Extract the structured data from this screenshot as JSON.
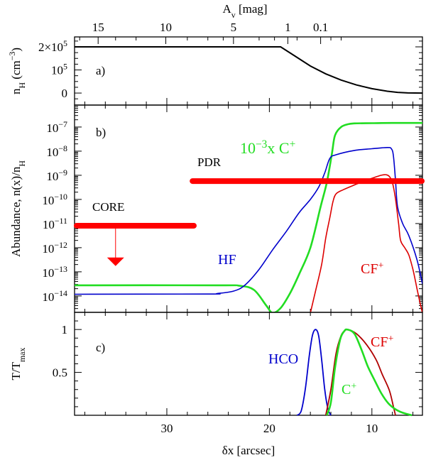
{
  "colors": {
    "hf": "#0000cc",
    "cplus": "#22dd22",
    "cfplus": "#dd0000",
    "cfplus_dark": "#b00000",
    "bar": "#ff0000",
    "density": "#000000"
  },
  "chart_data": [
    {
      "panel": "a",
      "type": "line",
      "panel_label": "a)",
      "ylabel": [
        {
          "t": "n"
        },
        {
          "t": "H",
          "sub": true
        },
        {
          "t": " (cm"
        },
        {
          "t": "−3",
          "sup": true
        },
        {
          "t": ")"
        }
      ],
      "xlim": [
        39.0,
        5.07
      ],
      "ylim": [
        -52000,
        243000
      ],
      "yticks": [
        {
          "v": 200000,
          "label": [
            {
              "t": "2×10"
            },
            {
              "t": "5",
              "sup": true
            }
          ]
        },
        {
          "v": 100000,
          "label": [
            {
              "t": "10"
            },
            {
              "t": "5",
              "sup": true
            }
          ]
        },
        {
          "v": 0,
          "label": [
            {
              "t": "0"
            }
          ]
        }
      ],
      "top_axis": {
        "label": [
          {
            "t": "A"
          },
          {
            "t": "v",
            "sub": true
          },
          {
            "t": " [mag]"
          }
        ],
        "ticks": [
          {
            "label": "15",
            "dx": 36.7
          },
          {
            "label": "10",
            "dx": 30.1
          },
          {
            "label": "5",
            "dx": 23.5
          },
          {
            "label": "1",
            "dx": 18.2
          },
          {
            "label": "0.1",
            "dx": 15.0
          }
        ]
      },
      "series": [
        {
          "name": "n_H",
          "color": "density",
          "x": [
            39.0,
            18.9,
            17.5,
            16,
            14.5,
            13,
            11.5,
            10,
            8.5,
            7.5,
            6.5,
            5.07
          ],
          "y": [
            200000,
            200000,
            160000,
            117000,
            83000,
            56000,
            35000,
            19000,
            8000,
            3000,
            500,
            0
          ]
        }
      ]
    },
    {
      "panel": "b",
      "type": "line",
      "panel_label": "b)",
      "ylabel": [
        {
          "t": "Abundance, n(x)/n"
        },
        {
          "t": "H",
          "sub": true
        }
      ],
      "yscale": "log",
      "xlim": [
        39.0,
        5.07
      ],
      "ylim_log10": [
        -14.68,
        -6.09
      ],
      "yticks_log10": [
        -14,
        -13,
        -12,
        -11,
        -10,
        -9,
        -8,
        -7
      ],
      "series": [
        {
          "name": "10^-3 x C+",
          "color": "cplus",
          "x": [
            39.0,
            25,
            22.9,
            21.5,
            20.3,
            19.7,
            18.9,
            18,
            17.1,
            16,
            15,
            14.4,
            13.9,
            13.6,
            13,
            12.3,
            11.7,
            10,
            8,
            5.07
          ],
          "y_log10": [
            -13.56,
            -13.56,
            -13.58,
            -13.75,
            -14.4,
            -14.7,
            -14.5,
            -13.9,
            -13.1,
            -12.0,
            -10.3,
            -9.3,
            -8.1,
            -7.35,
            -7.0,
            -6.88,
            -6.85,
            -6.84,
            -6.83,
            -6.83
          ]
        },
        {
          "name": "HF",
          "color": "hf",
          "x": [
            39.0,
            26,
            25.1,
            23.5,
            22.4,
            21,
            19.7,
            18.3,
            17.1,
            16,
            15.2,
            14.6,
            14.1,
            13.5,
            11.7,
            10,
            8.5,
            8.1,
            7.9,
            7.7,
            7.5,
            7.0,
            6.4,
            5.6,
            5.07
          ],
          "y_log10": [
            -13.93,
            -13.92,
            -13.9,
            -13.8,
            -13.56,
            -12.9,
            -12.1,
            -11.3,
            -10.55,
            -10.0,
            -9.5,
            -8.9,
            -8.3,
            -8.15,
            -7.97,
            -7.9,
            -7.85,
            -7.9,
            -8.2,
            -9.2,
            -10.3,
            -11.0,
            -11.5,
            -12.5,
            -13.5
          ]
        },
        {
          "name": "CF+",
          "color": "cfplus",
          "x": [
            16.0,
            15.5,
            14.9,
            14.5,
            14.1,
            13.8,
            13.5,
            12.8,
            11.7,
            10.5,
            9.1,
            8.6,
            8.3,
            8.0,
            7.7,
            7.4,
            7.2,
            6.8,
            6.4,
            6.0,
            5.6,
            5.3,
            5.07
          ],
          "y_log10": [
            -14.7,
            -13.8,
            -12.7,
            -11.6,
            -10.75,
            -10.1,
            -9.77,
            -9.6,
            -9.4,
            -9.2,
            -9.0,
            -8.98,
            -9.05,
            -9.3,
            -9.97,
            -11.0,
            -11.7,
            -12.0,
            -12.3,
            -12.9,
            -13.7,
            -14.3,
            -14.7
          ]
        }
      ],
      "bars": [
        {
          "label": "PDR",
          "x": [
            27.7,
            5.07
          ],
          "y_log10": -9.24
        },
        {
          "label": "CORE",
          "x": [
            39.0,
            27.3
          ],
          "y_log10": -11.09,
          "upper_limit_arrow": {
            "x": 35.0,
            "to_log10": -12.7
          }
        }
      ],
      "annotations": [
        {
          "id": "cplus",
          "color": "cplus",
          "text": [
            {
              "t": "10"
            },
            {
              "t": "−3",
              "sup": true
            },
            {
              "t": "x C"
            },
            {
              "t": "+",
              "sup": true
            }
          ]
        },
        {
          "id": "hf",
          "color": "hf",
          "text": [
            {
              "t": "HF"
            }
          ]
        },
        {
          "id": "cfplus",
          "color": "cfplus",
          "text": [
            {
              "t": "CF"
            },
            {
              "t": "+",
              "sup": true
            }
          ]
        }
      ]
    },
    {
      "panel": "c",
      "type": "line",
      "panel_label": "c)",
      "ylabel": [
        {
          "t": "T/T"
        },
        {
          "t": "max",
          "sub": true
        }
      ],
      "xlabel": [
        {
          "t": "δx [arcsec]"
        }
      ],
      "xlim": [
        39.0,
        5.07
      ],
      "ylim": [
        0,
        1.2
      ],
      "xticks": [
        30,
        20,
        10
      ],
      "yticks": [
        {
          "v": 1,
          "label": "1"
        },
        {
          "v": 0.5,
          "label": "0.5"
        }
      ],
      "series": [
        {
          "name": "HCO",
          "color": "hf",
          "x": [
            17.3,
            16.9,
            16.5,
            16.1,
            15.8,
            15.5,
            15.2,
            14.9,
            14.6,
            14.3,
            14.0
          ],
          "y": [
            0,
            0.05,
            0.3,
            0.7,
            0.93,
            1.0,
            0.93,
            0.65,
            0.3,
            0.08,
            0
          ]
        },
        {
          "name": "CF+",
          "color": "cfplus_dark",
          "x": [
            14.5,
            14.0,
            13.5,
            13.0,
            12.6,
            12.3,
            11.5,
            10.5,
            9.6,
            9.0,
            8.3,
            7.9,
            7.7
          ],
          "y": [
            0,
            0.3,
            0.72,
            0.93,
            0.99,
            1.0,
            0.95,
            0.82,
            0.65,
            0.48,
            0.29,
            0.1,
            0
          ]
        },
        {
          "name": "C+",
          "color": "cplus",
          "x": [
            14.4,
            14.0,
            13.6,
            13.1,
            12.7,
            12.4,
            11.7,
            11.0,
            10.4,
            9.7,
            9.1,
            8.4,
            7.7,
            7.0,
            6.1
          ],
          "y": [
            0,
            0.15,
            0.55,
            0.88,
            0.98,
            1.0,
            0.95,
            0.76,
            0.57,
            0.4,
            0.26,
            0.14,
            0.07,
            0.03,
            0
          ]
        }
      ],
      "annotations": [
        {
          "id": "hco",
          "color": "hf",
          "text": [
            {
              "t": "HCO"
            }
          ]
        },
        {
          "id": "cfplus",
          "color": "cfplus",
          "text": [
            {
              "t": "CF"
            },
            {
              "t": "+",
              "sup": true
            }
          ]
        },
        {
          "id": "cplus",
          "color": "cplus",
          "text": [
            {
              "t": "C"
            },
            {
              "t": "+",
              "sup": true
            }
          ]
        }
      ]
    }
  ]
}
